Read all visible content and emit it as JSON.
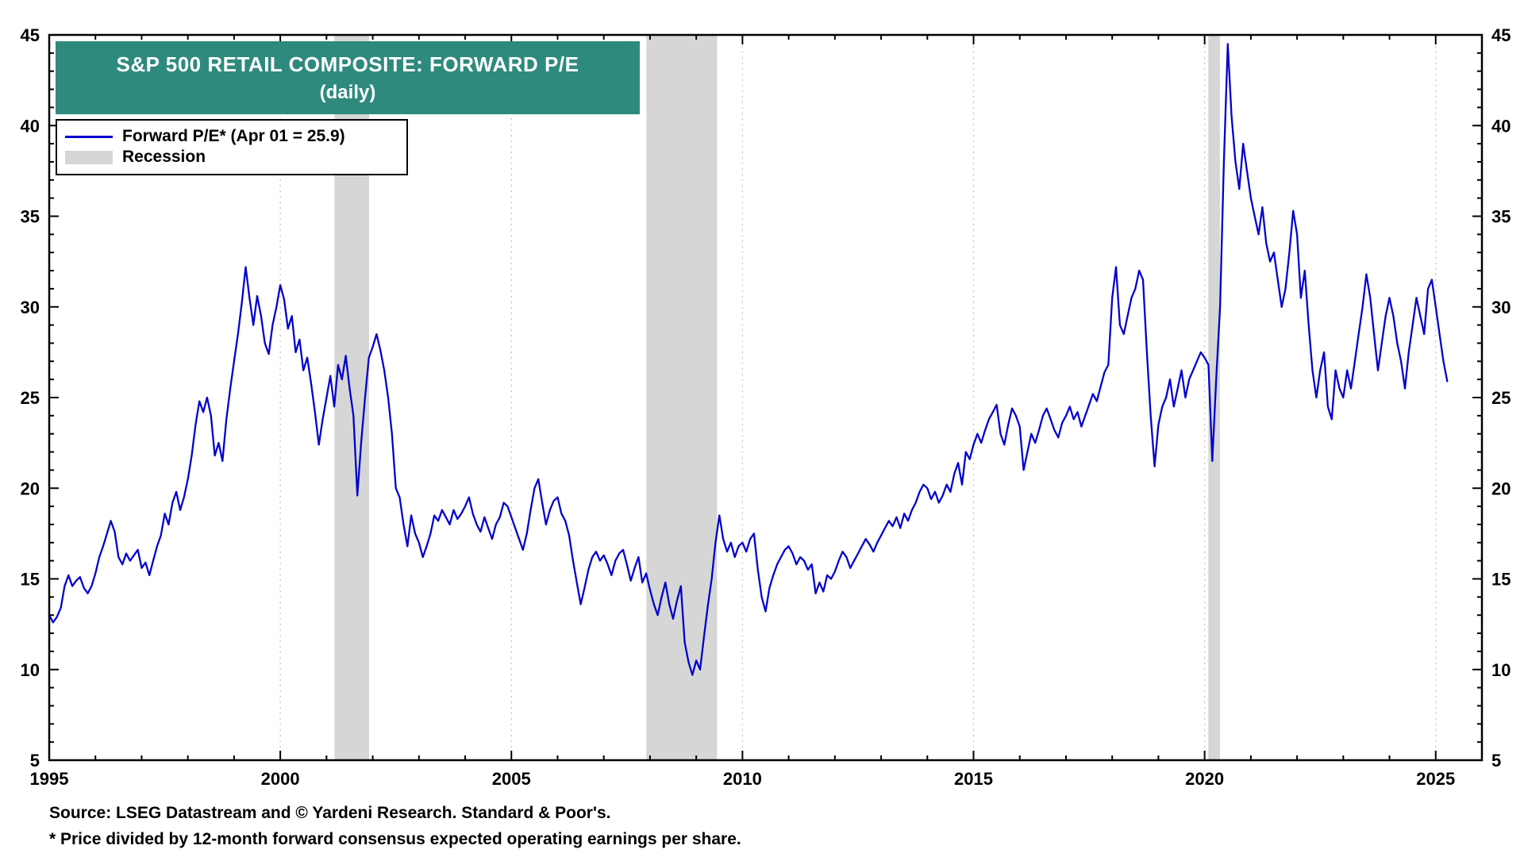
{
  "title": {
    "line1": "S&P 500 RETAIL COMPOSITE: FORWARD P/E",
    "line2": "(daily)"
  },
  "legend": {
    "series_label": "Forward P/E* (Apr 01 = 25.9)",
    "recession_label": "Recession"
  },
  "footer": {
    "source": "Source: LSEG Datastream and © Yardeni Research. Standard & Poor's.",
    "note": "* Price divided by 12-month forward consensus expected operating earnings per share."
  },
  "colors": {
    "line": "#0202cc",
    "recession": "#d6d6d6",
    "title_bg": "#2e8a7d",
    "grid": "#c8c8c8",
    "axis": "#000000"
  },
  "chart_data": {
    "type": "line",
    "title": "S&P 500 RETAIL COMPOSITE: FORWARD P/E (daily)",
    "ylabel": "Forward P/E",
    "xlim": [
      1995,
      2026
    ],
    "ylim": [
      5,
      45
    ],
    "x_ticks": [
      1995,
      2000,
      2005,
      2010,
      2015,
      2020,
      2025
    ],
    "y_ticks": [
      5,
      10,
      15,
      20,
      25,
      30,
      35,
      40,
      45
    ],
    "grid": "dotted vertical lines at labeled years",
    "legend_position": "top-left",
    "latest": {
      "date": "Apr 01",
      "value": 25.9
    },
    "recessions": [
      [
        2001.17,
        2001.92
      ],
      [
        2007.92,
        2009.45
      ],
      [
        2020.08,
        2020.33
      ]
    ],
    "series": [
      {
        "name": "Forward P/E",
        "start_year": 1995,
        "interval_months": 1,
        "values": [
          13.0,
          12.6,
          12.9,
          13.4,
          14.6,
          15.2,
          14.6,
          14.9,
          15.1,
          14.5,
          14.2,
          14.6,
          15.3,
          16.2,
          16.8,
          17.5,
          18.2,
          17.6,
          16.2,
          15.8,
          16.4,
          16.0,
          16.3,
          16.6,
          15.6,
          15.9,
          15.2,
          16.0,
          16.8,
          17.4,
          18.6,
          18.0,
          19.2,
          19.8,
          18.8,
          19.5,
          20.5,
          21.8,
          23.5,
          24.8,
          24.2,
          25.0,
          24.0,
          21.8,
          22.5,
          21.5,
          23.8,
          25.5,
          27.0,
          28.5,
          30.2,
          32.2,
          30.5,
          29.0,
          30.6,
          29.5,
          28.0,
          27.4,
          29.0,
          30.0,
          31.2,
          30.4,
          28.8,
          29.5,
          27.5,
          28.2,
          26.5,
          27.2,
          25.8,
          24.2,
          22.4,
          23.8,
          25.0,
          26.2,
          24.5,
          26.8,
          26.0,
          27.3,
          25.5,
          24.0,
          19.6,
          22.5,
          25.0,
          27.2,
          27.8,
          28.5,
          27.6,
          26.5,
          25.0,
          23.0,
          20.0,
          19.5,
          18.0,
          16.8,
          18.5,
          17.5,
          17.0,
          16.2,
          16.8,
          17.5,
          18.5,
          18.2,
          18.8,
          18.4,
          18.0,
          18.8,
          18.3,
          18.6,
          19.0,
          19.5,
          18.6,
          18.0,
          17.6,
          18.4,
          17.8,
          17.2,
          18.0,
          18.4,
          19.2,
          19.0,
          18.4,
          17.8,
          17.2,
          16.6,
          17.5,
          18.8,
          20.0,
          20.5,
          19.2,
          18.0,
          18.8,
          19.3,
          19.5,
          18.6,
          18.2,
          17.4,
          16.0,
          14.8,
          13.6,
          14.5,
          15.5,
          16.2,
          16.5,
          16.0,
          16.3,
          15.8,
          15.2,
          16.0,
          16.4,
          16.6,
          15.8,
          14.9,
          15.6,
          16.2,
          14.8,
          15.3,
          14.4,
          13.6,
          13.0,
          14.0,
          14.8,
          13.6,
          12.8,
          13.8,
          14.6,
          11.5,
          10.4,
          9.7,
          10.5,
          10.0,
          11.8,
          13.5,
          15.0,
          17.0,
          18.5,
          17.2,
          16.5,
          17.0,
          16.2,
          16.8,
          17.0,
          16.5,
          17.2,
          17.5,
          15.5,
          14.0,
          13.2,
          14.5,
          15.2,
          15.8,
          16.2,
          16.6,
          16.8,
          16.4,
          15.8,
          16.2,
          16.0,
          15.5,
          15.8,
          14.2,
          14.8,
          14.3,
          15.2,
          15.0,
          15.4,
          16.0,
          16.5,
          16.2,
          15.6,
          16.0,
          16.4,
          16.8,
          17.2,
          16.9,
          16.5,
          17.0,
          17.4,
          17.8,
          18.2,
          17.9,
          18.4,
          17.8,
          18.6,
          18.2,
          18.8,
          19.2,
          19.8,
          20.2,
          20.0,
          19.4,
          19.8,
          19.2,
          19.6,
          20.2,
          19.8,
          20.8,
          21.4,
          20.2,
          22.0,
          21.6,
          22.4,
          23.0,
          22.5,
          23.2,
          23.8,
          24.2,
          24.6,
          23.0,
          22.4,
          23.5,
          24.4,
          24.0,
          23.4,
          21.0,
          22.0,
          23.0,
          22.5,
          23.2,
          24.0,
          24.4,
          23.8,
          23.2,
          22.8,
          23.6,
          24.0,
          24.5,
          23.8,
          24.2,
          23.4,
          24.0,
          24.6,
          25.2,
          24.8,
          25.6,
          26.4,
          26.8,
          30.5,
          32.2,
          29.0,
          28.5,
          29.5,
          30.5,
          31.0,
          32.0,
          31.5,
          27.5,
          24.0,
          21.2,
          23.5,
          24.5,
          25.0,
          26.0,
          24.5,
          25.5,
          26.5,
          25.0,
          26.0,
          26.5,
          27.0,
          27.5,
          27.2,
          26.8,
          21.5,
          26.0,
          30.0,
          38.0,
          44.5,
          40.5,
          38.0,
          36.5,
          39.0,
          37.5,
          36.0,
          35.0,
          34.0,
          35.5,
          33.5,
          32.5,
          33.0,
          31.5,
          30.0,
          31.0,
          33.0,
          35.3,
          34.0,
          30.5,
          32.0,
          29.0,
          26.5,
          25.0,
          26.5,
          27.5,
          24.5,
          23.8,
          26.5,
          25.5,
          25.0,
          26.5,
          25.5,
          27.0,
          28.5,
          30.0,
          31.8,
          30.5,
          28.5,
          26.5,
          28.0,
          29.5,
          30.5,
          29.5,
          28.0,
          27.0,
          25.5,
          27.5,
          29.0,
          30.5,
          29.5,
          28.5,
          31.0,
          31.5,
          30.0,
          28.5,
          27.0,
          25.9
        ]
      }
    ]
  }
}
